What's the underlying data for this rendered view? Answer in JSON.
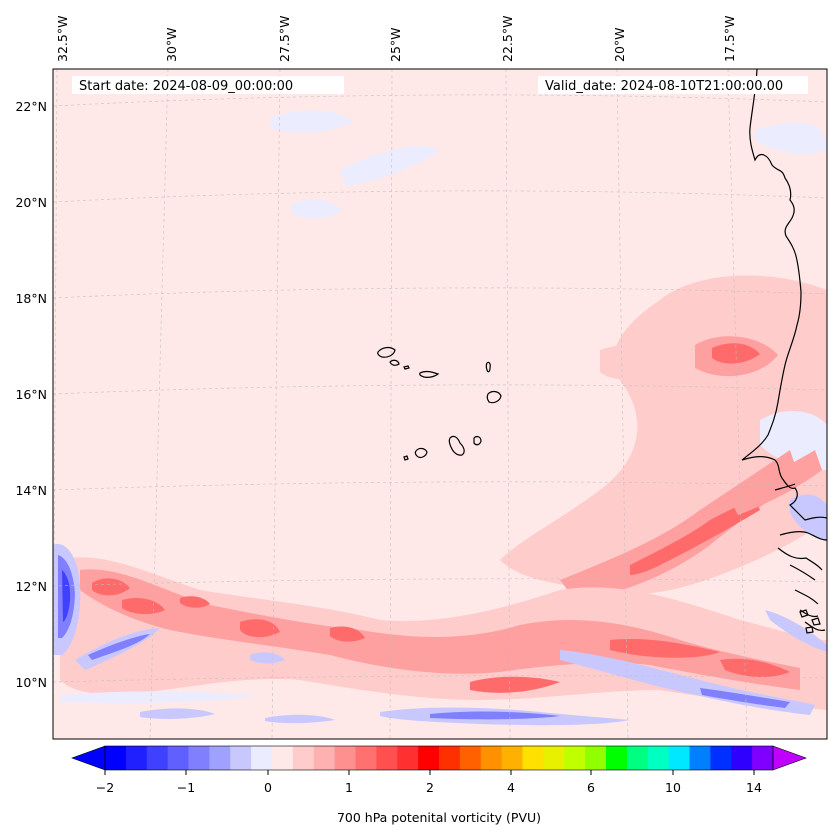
{
  "header": {
    "start_date": "Start date: 2024-08-09_00:00:00",
    "valid_date": "Valid_date: 2024-08-10T21:00:00.00"
  },
  "axes": {
    "longitude_labels": [
      "32.5°W",
      "30°W",
      "27.5°W",
      "25°W",
      "22.5°W",
      "20°W",
      "17.5°W"
    ],
    "latitude_labels": [
      "22°N",
      "20°N",
      "18°N",
      "16°N",
      "14°N",
      "12°N",
      "10°N"
    ]
  },
  "colorbar": {
    "title": "700 hPa potenital vorticity (PVU)",
    "tick_labels": [
      "−2",
      "−1",
      "0",
      "1",
      "2",
      "4",
      "6",
      "10",
      "14"
    ],
    "colors": [
      "#0000ff",
      "#2020ff",
      "#4040ff",
      "#6060ff",
      "#8080ff",
      "#a0a0ff",
      "#c8c8ff",
      "#ececff",
      "#ffe8e8",
      "#ffcccc",
      "#ffb0b0",
      "#ff9090",
      "#ff7070",
      "#ff5050",
      "#ff3030",
      "#ff0000",
      "#ff3000",
      "#ff6000",
      "#ff9000",
      "#ffb000",
      "#ffe000",
      "#e8f000",
      "#c0ff00",
      "#90ff00",
      "#00ff00",
      "#00ff80",
      "#00ffc0",
      "#00e8ff",
      "#0080ff",
      "#0030ff",
      "#3000ff",
      "#8000ff"
    ],
    "under_color": "#0000ff",
    "over_color": "#c000ff"
  },
  "field": {
    "background_color": "#ffe8e8",
    "negative_light": "#ececff",
    "negative_mid": "#c8c8ff",
    "negative_strong": "#8080ff",
    "negative_peak": "#4040ff",
    "positive_light": "#ffcccc",
    "positive_mid": "#ffa0a0",
    "positive_strong": "#ff6a6a"
  }
}
